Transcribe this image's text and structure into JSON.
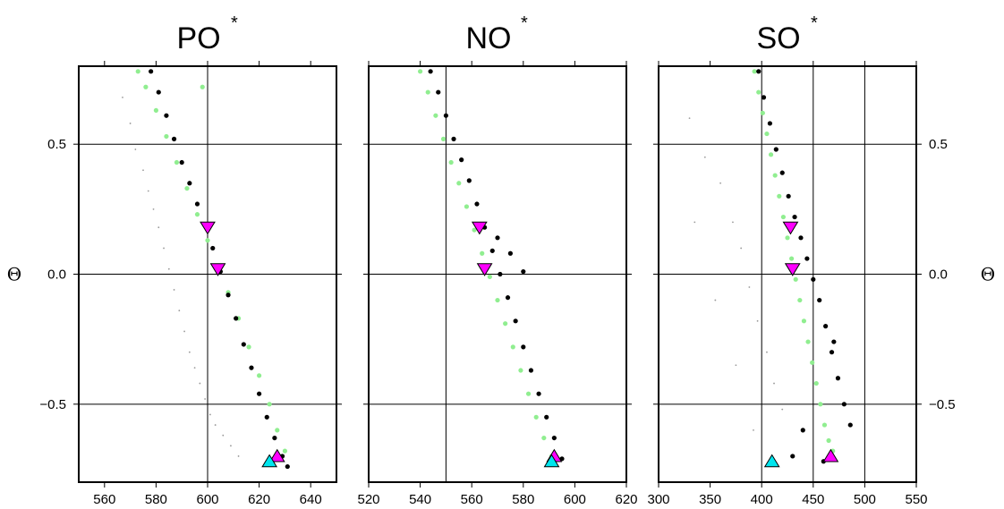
{
  "chart_data": [
    {
      "type": "scatter",
      "title": "PO",
      "title_superscript": "*",
      "xlim": [
        550,
        650
      ],
      "ylim": [
        -0.8,
        0.8
      ],
      "x_ticks": [
        560,
        580,
        600,
        620,
        640
      ],
      "x_tick_labels": [
        "560",
        "580",
        "600",
        "620",
        "640"
      ],
      "y_ticks": [
        -0.5,
        0.0,
        0.5
      ],
      "y_tick_labels": [
        "−0.5",
        "0.0",
        "0.5"
      ],
      "y_tick_labels_side": "left",
      "ylabel": "Θ",
      "ylabel_side": "left",
      "grid_x": [
        600
      ],
      "grid_y": [
        -0.5,
        0.0,
        0.5
      ],
      "series": [
        {
          "role": "faint-samples",
          "color": "#999999",
          "marker": "dot-small",
          "x": [
            567,
            570,
            572,
            575,
            577,
            579,
            581,
            583,
            585,
            587,
            589,
            591,
            593,
            595,
            597,
            599,
            601,
            603,
            606,
            609,
            612
          ],
          "y": [
            0.68,
            0.58,
            0.48,
            0.4,
            0.32,
            0.25,
            0.18,
            0.1,
            0.02,
            -0.06,
            -0.14,
            -0.22,
            -0.3,
            -0.36,
            -0.42,
            -0.48,
            -0.54,
            -0.58,
            -0.62,
            -0.66,
            -0.7
          ]
        },
        {
          "role": "light-green",
          "color": "#90ee90",
          "marker": "dot",
          "x": [
            573,
            576,
            580,
            584,
            588,
            592,
            596,
            600,
            604,
            608,
            612,
            616,
            620,
            624,
            627,
            630,
            598
          ],
          "y": [
            0.78,
            0.72,
            0.63,
            0.53,
            0.43,
            0.33,
            0.23,
            0.13,
            0.03,
            -0.07,
            -0.17,
            -0.28,
            -0.39,
            -0.5,
            -0.6,
            -0.68,
            0.72
          ]
        },
        {
          "role": "black",
          "color": "#000000",
          "marker": "dot",
          "x": [
            578,
            581,
            584,
            587,
            590,
            593,
            596,
            599,
            602,
            605,
            608,
            611,
            614,
            617,
            620,
            623,
            626,
            629,
            631
          ],
          "y": [
            0.78,
            0.7,
            0.61,
            0.52,
            0.43,
            0.35,
            0.27,
            0.19,
            0.1,
            0.01,
            -0.08,
            -0.17,
            -0.27,
            -0.36,
            -0.46,
            -0.55,
            -0.63,
            -0.7,
            -0.74
          ]
        }
      ],
      "markers": [
        {
          "shape": "triangle-down",
          "color": "#ff00ff",
          "x": 600,
          "y": 0.18
        },
        {
          "shape": "triangle-down",
          "color": "#ff00ff",
          "x": 604,
          "y": 0.02
        },
        {
          "shape": "triangle-up",
          "color": "#ff00ff",
          "x": 627,
          "y": -0.7
        },
        {
          "shape": "triangle-up",
          "color": "#00e5ee",
          "x": 624,
          "y": -0.72
        }
      ]
    },
    {
      "type": "scatter",
      "title": "NO",
      "title_superscript": "*",
      "xlim": [
        520,
        620
      ],
      "ylim": [
        -0.8,
        0.8
      ],
      "x_ticks": [
        520,
        540,
        560,
        580,
        600,
        620
      ],
      "x_tick_labels": [
        "520",
        "540",
        "560",
        "580",
        "600",
        "620"
      ],
      "y_ticks": [
        -0.5,
        0.0,
        0.5
      ],
      "y_tick_labels": [],
      "grid_x": [
        550
      ],
      "grid_y": [
        -0.5,
        0.0,
        0.5
      ],
      "series": [
        {
          "role": "light-green",
          "color": "#90ee90",
          "marker": "dot",
          "x": [
            540,
            543,
            546,
            549,
            552,
            555,
            558,
            561,
            564,
            567,
            570,
            573,
            576,
            579,
            582,
            585,
            588,
            591
          ],
          "y": [
            0.78,
            0.7,
            0.61,
            0.52,
            0.43,
            0.35,
            0.26,
            0.17,
            0.08,
            -0.01,
            -0.1,
            -0.19,
            -0.28,
            -0.37,
            -0.46,
            -0.55,
            -0.63,
            -0.7
          ]
        },
        {
          "role": "black",
          "color": "#000000",
          "marker": "dot",
          "x": [
            544,
            547,
            550,
            553,
            556,
            559,
            562,
            565,
            568,
            571,
            574,
            577,
            580,
            583,
            586,
            589,
            592,
            595,
            575,
            580,
            570
          ],
          "y": [
            0.78,
            0.7,
            0.61,
            0.52,
            0.44,
            0.36,
            0.27,
            0.18,
            0.09,
            0.0,
            -0.09,
            -0.18,
            -0.28,
            -0.37,
            -0.46,
            -0.55,
            -0.63,
            -0.71,
            0.08,
            0.01,
            0.14
          ]
        }
      ],
      "markers": [
        {
          "shape": "triangle-down",
          "color": "#ff00ff",
          "x": 563,
          "y": 0.18
        },
        {
          "shape": "triangle-down",
          "color": "#ff00ff",
          "x": 565,
          "y": 0.02
        },
        {
          "shape": "triangle-up",
          "color": "#ff00ff",
          "x": 592,
          "y": -0.7
        },
        {
          "shape": "triangle-up",
          "color": "#00e5ee",
          "x": 591,
          "y": -0.72
        }
      ]
    },
    {
      "type": "scatter",
      "title": "SO",
      "title_superscript": "*",
      "xlim": [
        300,
        550
      ],
      "ylim": [
        -0.8,
        0.8
      ],
      "x_ticks": [
        300,
        350,
        400,
        450,
        500,
        550
      ],
      "x_tick_labels": [
        "300",
        "350",
        "400",
        "450",
        "500",
        "550"
      ],
      "y_ticks": [
        -0.5,
        0.0,
        0.5
      ],
      "y_tick_labels": [
        "−0.5",
        "0.0",
        "0.5"
      ],
      "y_tick_labels_side": "right",
      "ylabel": "Θ",
      "ylabel_side": "right",
      "grid_x": [
        400,
        450,
        500
      ],
      "grid_y": [
        -0.5,
        0.0,
        0.5
      ],
      "series": [
        {
          "role": "faint-samples",
          "color": "#999999",
          "marker": "dot-small",
          "x": [
            330,
            345,
            360,
            372,
            380,
            388,
            396,
            405,
            412,
            420,
            335,
            355,
            375,
            392
          ],
          "y": [
            0.6,
            0.45,
            0.35,
            0.2,
            0.1,
            -0.05,
            -0.18,
            -0.3,
            -0.42,
            -0.52,
            0.2,
            -0.1,
            -0.35,
            -0.6
          ]
        },
        {
          "role": "light-green",
          "color": "#90ee90",
          "marker": "dot",
          "x": [
            393,
            397,
            401,
            405,
            409,
            413,
            417,
            421,
            425,
            429,
            433,
            437,
            441,
            445,
            449,
            453,
            457,
            461,
            465,
            469
          ],
          "y": [
            0.78,
            0.7,
            0.62,
            0.54,
            0.46,
            0.38,
            0.3,
            0.22,
            0.14,
            0.06,
            -0.02,
            -0.1,
            -0.18,
            -0.26,
            -0.34,
            -0.42,
            -0.5,
            -0.58,
            -0.64,
            -0.68
          ]
        },
        {
          "role": "black",
          "color": "#000000",
          "marker": "dot",
          "x": [
            397,
            402,
            408,
            414,
            420,
            426,
            432,
            438,
            444,
            450,
            456,
            462,
            468,
            474,
            480,
            486,
            440,
            430,
            460,
            470
          ],
          "y": [
            0.78,
            0.68,
            0.58,
            0.48,
            0.39,
            0.3,
            0.22,
            0.14,
            0.06,
            -0.02,
            -0.1,
            -0.2,
            -0.3,
            -0.4,
            -0.5,
            -0.58,
            -0.6,
            -0.7,
            -0.72,
            -0.26
          ]
        }
      ],
      "markers": [
        {
          "shape": "triangle-down",
          "color": "#ff00ff",
          "x": 428,
          "y": 0.18
        },
        {
          "shape": "triangle-down",
          "color": "#ff00ff",
          "x": 430,
          "y": 0.02
        },
        {
          "shape": "triangle-up",
          "color": "#ff00ff",
          "x": 467,
          "y": -0.7
        },
        {
          "shape": "triangle-up",
          "color": "#00e5ee",
          "x": 410,
          "y": -0.72
        }
      ]
    }
  ]
}
